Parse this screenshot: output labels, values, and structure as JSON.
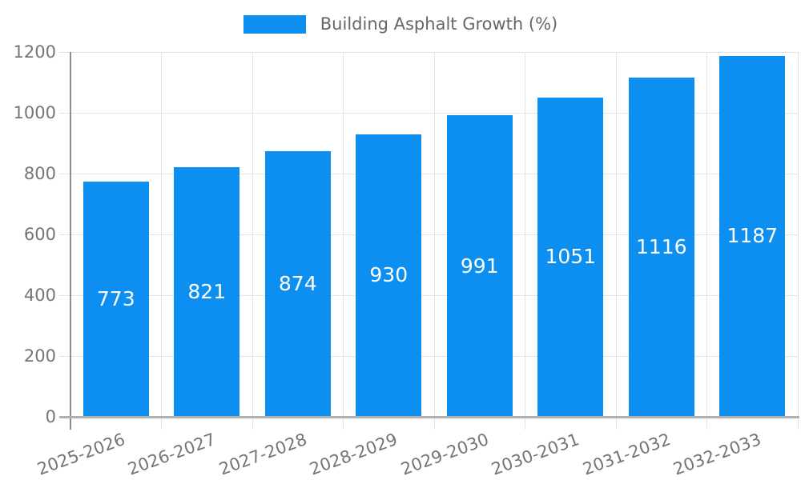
{
  "chart_data": {
    "type": "bar",
    "title": "Building Asphalt Growth (%)",
    "categories": [
      "2025-2026",
      "2026-2027",
      "2027-2028",
      "2028-2029",
      "2029-2030",
      "2030-2031",
      "2031-2032",
      "2032-2033"
    ],
    "values": [
      773,
      821,
      874,
      930,
      991,
      1051,
      1116,
      1187
    ],
    "xlabel": "",
    "ylabel": "",
    "ylim": [
      0,
      1200
    ],
    "yticks": [
      0,
      200,
      400,
      600,
      800,
      1000,
      1200
    ],
    "grid": true,
    "legend_position": "top-center",
    "x_label_rotation_deg": -20,
    "colors": {
      "bar": "#0d8ff2",
      "value_label": "#ffffff",
      "axis_text": "#757575",
      "legend_text": "#666666",
      "gridline": "#e3e3e3",
      "y_axis_line": "#8c8c8c",
      "x_axis_line": "#b0b0b0"
    }
  }
}
